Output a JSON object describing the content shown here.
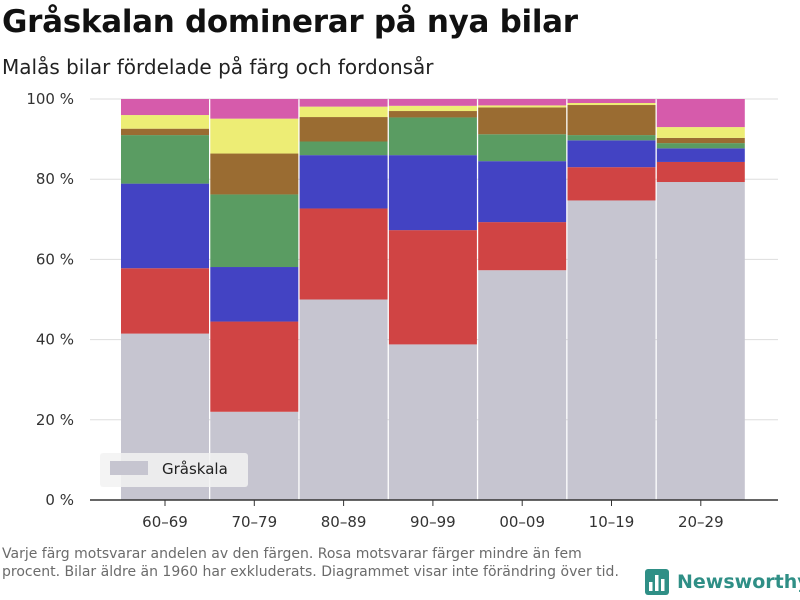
{
  "title": "Gråskalan dominerar på nya bilar",
  "subtitle": "Malås bilar fördelade på färg och fordonsår",
  "footnote": "Varje färg motsvarar andelen av den färgen. Rosa motsvarar färger mindre än fem procent. Bilar äldre än 1960 har exkluderats. Diagrammet visar inte förändring över tid.",
  "brand": {
    "name": "Newsworthy",
    "icon": "bar-chart-logo-icon",
    "color": "#2f8f86"
  },
  "chart_data": {
    "type": "bar",
    "stacked": true,
    "categories": [
      "60–69",
      "70–79",
      "80–89",
      "90–99",
      "00–09",
      "10–19",
      "20–29"
    ],
    "ylim": [
      0,
      100
    ],
    "yticks": [
      0,
      20,
      40,
      60,
      80,
      100
    ],
    "ytick_labels": [
      "0 %",
      "20 %",
      "40 %",
      "60 %",
      "80 %",
      "100 %"
    ],
    "grid": true,
    "legend": {
      "position": "bottom-left",
      "entries": [
        "Gråskala"
      ]
    },
    "series": [
      {
        "name": "Gråskala",
        "color": "#c6c5d0",
        "values": [
          41.5,
          22,
          50,
          38.8,
          57.3,
          74.7,
          79.3
        ]
      },
      {
        "color": "#d04444",
        "values": [
          16.3,
          22.5,
          22.7,
          28.5,
          12,
          8.3,
          5
        ]
      },
      {
        "color": "#4343c3",
        "values": [
          21.1,
          13.6,
          13.3,
          18.7,
          15.2,
          6.7,
          3.4
        ]
      },
      {
        "color": "#5a9c62",
        "values": [
          12.1,
          18.1,
          3.4,
          9.4,
          6.7,
          1.3,
          1.3
        ]
      },
      {
        "color": "#9a6c32",
        "values": [
          1.6,
          10.2,
          6.1,
          1.6,
          6.7,
          7.5,
          1.3
        ]
      },
      {
        "color": "#eded75",
        "values": [
          3.4,
          8.7,
          2.6,
          1.3,
          0.5,
          0.5,
          2.7
        ]
      },
      {
        "color": "#d65bab",
        "values": [
          4,
          4.9,
          1.9,
          1.7,
          1.6,
          1,
          7
        ]
      }
    ]
  }
}
